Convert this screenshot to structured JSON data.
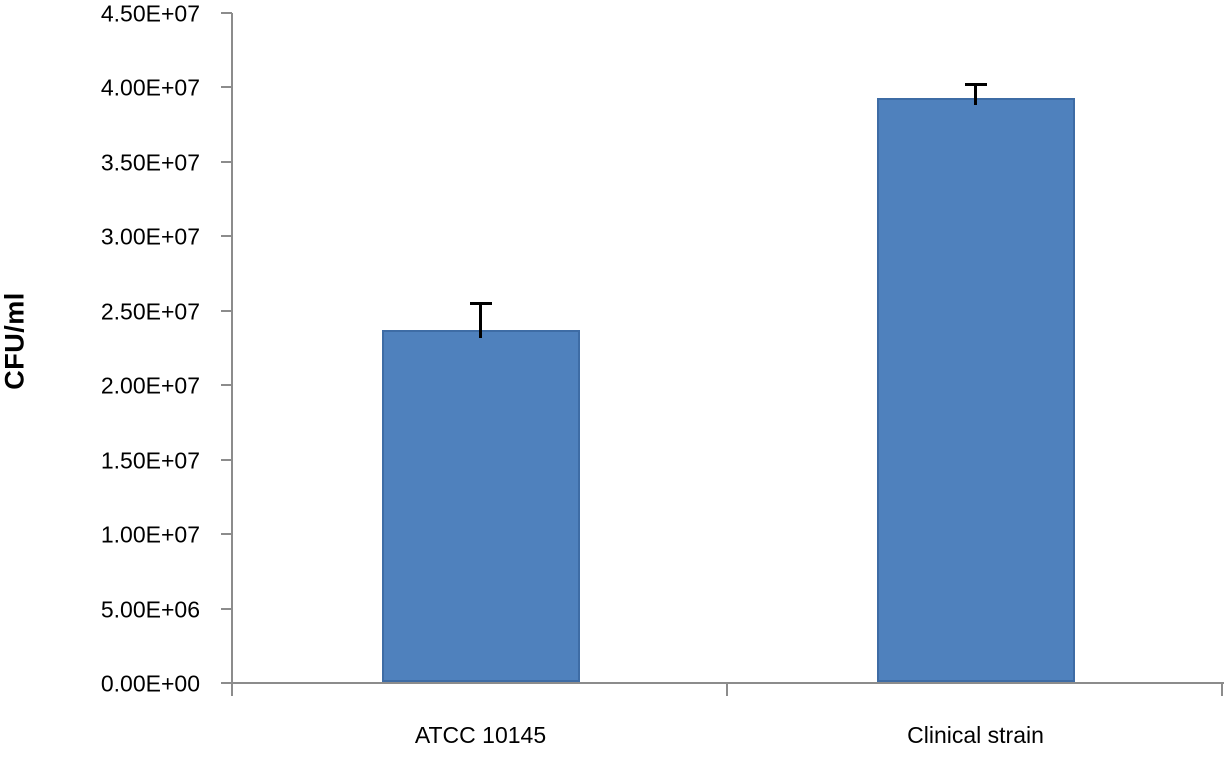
{
  "chart_data": {
    "type": "bar",
    "title": "",
    "xlabel": "",
    "ylabel": "CFU/ml",
    "categories": [
      "ATCC 10145",
      "Clinical strain"
    ],
    "values": [
      23700000,
      39300000
    ],
    "errors_plus": [
      1800000,
      900000
    ],
    "ylim": [
      0,
      45000000
    ],
    "ytick_step": 5000000,
    "ytick_labels": [
      "0.00E+00",
      "5.00E+06",
      "1.00E+07",
      "1.50E+07",
      "2.00E+07",
      "2.50E+07",
      "3.00E+07",
      "3.50E+07",
      "4.00E+07",
      "4.50E+07"
    ],
    "grid": false,
    "legend": false,
    "colors": {
      "bar_fill": "#4F81BD",
      "bar_border": "#3E6CA5",
      "axis": "#8C8C8C",
      "error_bar": "#000000",
      "text": "#000000"
    }
  }
}
